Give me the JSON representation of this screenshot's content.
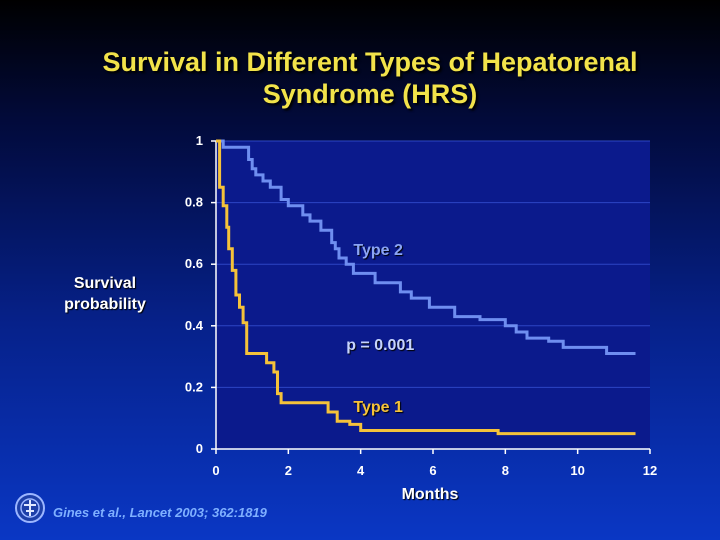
{
  "title_line1": "Survival in Different Types of Hepatorenal",
  "title_line2": "Syndrome (HRS)",
  "chart_data": {
    "type": "line",
    "title": "Survival in Different Types of Hepatorenal Syndrome (HRS)",
    "xlabel": "Months",
    "ylabel": "Survival probability",
    "xlim": [
      0,
      12
    ],
    "ylim": [
      0,
      1
    ],
    "xticks": [
      "0",
      "2",
      "4",
      "6",
      "8",
      "10",
      "12"
    ],
    "yticks": [
      "0",
      "0.2",
      "0.4",
      "0.6",
      "0.8",
      "1"
    ],
    "grid": true,
    "series": [
      {
        "name": "Type 2",
        "color": "#6f8ef0",
        "x": [
          0,
          0.2,
          0.2,
          0.9,
          0.9,
          1.0,
          1.0,
          1.1,
          1.1,
          1.3,
          1.3,
          1.5,
          1.5,
          1.8,
          1.8,
          2.0,
          2.0,
          2.4,
          2.4,
          2.6,
          2.6,
          2.9,
          2.9,
          3.2,
          3.2,
          3.3,
          3.3,
          3.4,
          3.4,
          3.6,
          3.6,
          3.8,
          3.8,
          4.4,
          4.4,
          5.1,
          5.1,
          5.4,
          5.4,
          5.9,
          5.9,
          6.6,
          6.6,
          7.3,
          7.3,
          8.0,
          8.0,
          8.3,
          8.3,
          8.6,
          8.6,
          9.2,
          9.2,
          9.6,
          9.6,
          10.8,
          10.8,
          11.6
        ],
        "y": [
          1,
          1,
          0.98,
          0.98,
          0.94,
          0.94,
          0.91,
          0.91,
          0.89,
          0.89,
          0.87,
          0.87,
          0.85,
          0.85,
          0.81,
          0.81,
          0.79,
          0.79,
          0.76,
          0.76,
          0.74,
          0.74,
          0.71,
          0.71,
          0.67,
          0.67,
          0.65,
          0.65,
          0.62,
          0.62,
          0.6,
          0.6,
          0.57,
          0.57,
          0.54,
          0.54,
          0.51,
          0.51,
          0.49,
          0.49,
          0.46,
          0.46,
          0.43,
          0.43,
          0.42,
          0.42,
          0.4,
          0.4,
          0.38,
          0.38,
          0.36,
          0.36,
          0.35,
          0.35,
          0.33,
          0.33,
          0.31,
          0.31
        ]
      },
      {
        "name": "Type 1",
        "color": "#f5c23a",
        "x": [
          0,
          0.1,
          0.1,
          0.2,
          0.2,
          0.3,
          0.3,
          0.35,
          0.35,
          0.45,
          0.45,
          0.55,
          0.55,
          0.65,
          0.65,
          0.75,
          0.75,
          0.85,
          0.85,
          1.4,
          1.4,
          1.6,
          1.6,
          1.7,
          1.7,
          1.8,
          1.8,
          3.1,
          3.1,
          3.35,
          3.35,
          3.7,
          3.7,
          4.0,
          4.0,
          7.8,
          7.8,
          11.6
        ],
        "y": [
          1,
          1,
          0.85,
          0.85,
          0.79,
          0.79,
          0.72,
          0.72,
          0.65,
          0.65,
          0.58,
          0.58,
          0.5,
          0.5,
          0.46,
          0.46,
          0.41,
          0.41,
          0.31,
          0.31,
          0.28,
          0.28,
          0.25,
          0.25,
          0.18,
          0.18,
          0.15,
          0.15,
          0.12,
          0.12,
          0.09,
          0.09,
          0.08,
          0.08,
          0.06,
          0.06,
          0.05,
          0.05
        ]
      }
    ],
    "annotations": [
      {
        "text": "Type 2",
        "x": 3.8,
        "y": 0.64,
        "color": "#8aa4f5"
      },
      {
        "text": "p = 0.001",
        "x": 3.6,
        "y": 0.33,
        "color": "#c7d4ff"
      },
      {
        "text": "Type 1",
        "x": 3.8,
        "y": 0.13,
        "color": "#f5c23a"
      }
    ]
  },
  "citation": "Gines et al., Lancet 2003; 362:1819"
}
